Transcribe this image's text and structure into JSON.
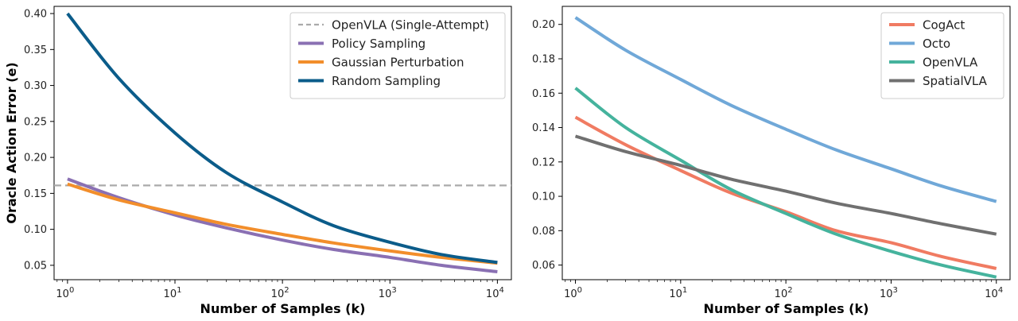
{
  "chart_data": [
    {
      "type": "line",
      "xscale": "log",
      "xlim": [
        0.75,
        13500
      ],
      "ylim": [
        0.03,
        0.41
      ],
      "xlabel": "Number of Samples (k)",
      "ylabel": "Oracle Action Error (e)",
      "xticks": [
        1,
        10,
        100,
        1000,
        10000
      ],
      "yticks": [
        0.05,
        0.1,
        0.15,
        0.2,
        0.25,
        0.3,
        0.35,
        0.4
      ],
      "ytick_labels": [
        "0.05",
        "0.10",
        "0.15",
        "0.20",
        "0.25",
        "0.30",
        "0.35",
        "0.40"
      ],
      "legend_position": "top-right",
      "grid": false,
      "series": [
        {
          "name": "OpenVLA (Single-Attempt)",
          "color": "#aaaaaa",
          "style": "dashed",
          "x": [
            1,
            10000
          ],
          "y": [
            0.161,
            0.161
          ]
        },
        {
          "name": "Policy Sampling",
          "color": "#8a70b3",
          "style": "solid",
          "x": [
            1,
            3,
            10,
            30,
            100,
            300,
            1000,
            3000,
            10000
          ],
          "y": [
            0.17,
            0.144,
            0.12,
            0.102,
            0.085,
            0.072,
            0.061,
            0.05,
            0.041
          ]
        },
        {
          "name": "Gaussian Perturbation",
          "color": "#f28e2b",
          "style": "solid",
          "x": [
            1,
            3,
            10,
            30,
            100,
            300,
            1000,
            3000,
            10000
          ],
          "y": [
            0.163,
            0.141,
            0.123,
            0.107,
            0.093,
            0.081,
            0.07,
            0.061,
            0.053
          ]
        },
        {
          "name": "Random Sampling",
          "color": "#0b5c8a",
          "style": "solid",
          "x": [
            1,
            3,
            10,
            30,
            100,
            300,
            1000,
            3000,
            10000
          ],
          "y": [
            0.4,
            0.31,
            0.234,
            0.179,
            0.138,
            0.105,
            0.082,
            0.065,
            0.054
          ]
        }
      ]
    },
    {
      "type": "line",
      "xscale": "log",
      "xlim": [
        0.75,
        13500
      ],
      "ylim": [
        0.0515,
        0.2105
      ],
      "xlabel": "Number of Samples (k)",
      "ylabel": "",
      "xticks": [
        1,
        10,
        100,
        1000,
        10000
      ],
      "yticks": [
        0.06,
        0.08,
        0.1,
        0.12,
        0.14,
        0.16,
        0.18,
        0.2
      ],
      "ytick_labels": [
        "0.06",
        "0.08",
        "0.10",
        "0.12",
        "0.14",
        "0.16",
        "0.18",
        "0.20"
      ],
      "legend_position": "top-right",
      "grid": false,
      "series": [
        {
          "name": "CogAct",
          "color": "#f07b62",
          "style": "solid",
          "x": [
            1,
            3,
            10,
            30,
            100,
            300,
            1000,
            3000,
            10000
          ],
          "y": [
            0.146,
            0.13,
            0.115,
            0.102,
            0.091,
            0.08,
            0.073,
            0.065,
            0.058
          ]
        },
        {
          "name": "Octo",
          "color": "#70a8d8",
          "style": "solid",
          "x": [
            1,
            3,
            10,
            30,
            100,
            300,
            1000,
            3000,
            10000
          ],
          "y": [
            0.204,
            0.185,
            0.168,
            0.153,
            0.139,
            0.127,
            0.116,
            0.106,
            0.097
          ]
        },
        {
          "name": "OpenVLA",
          "color": "#45b39d",
          "style": "solid",
          "x": [
            1,
            3,
            10,
            30,
            100,
            300,
            1000,
            3000,
            10000
          ],
          "y": [
            0.163,
            0.14,
            0.121,
            0.104,
            0.09,
            0.078,
            0.068,
            0.06,
            0.053
          ]
        },
        {
          "name": "SpatialVLA",
          "color": "#707070",
          "style": "solid",
          "x": [
            1,
            3,
            10,
            30,
            100,
            300,
            1000,
            3000,
            10000
          ],
          "y": [
            0.135,
            0.126,
            0.118,
            0.11,
            0.103,
            0.096,
            0.09,
            0.084,
            0.078
          ]
        }
      ]
    }
  ]
}
